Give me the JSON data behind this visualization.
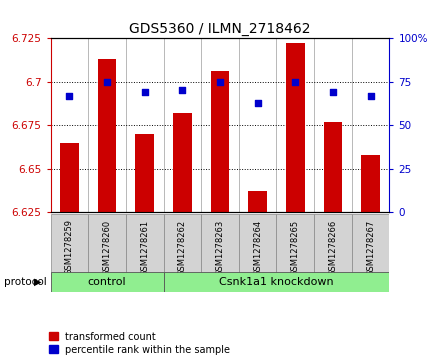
{
  "title": "GDS5360 / ILMN_2718462",
  "samples": [
    "GSM1278259",
    "GSM1278260",
    "GSM1278261",
    "GSM1278262",
    "GSM1278263",
    "GSM1278264",
    "GSM1278265",
    "GSM1278266",
    "GSM1278267"
  ],
  "bar_values": [
    6.665,
    6.713,
    6.67,
    6.682,
    6.706,
    6.637,
    6.722,
    6.677,
    6.658
  ],
  "dot_values": [
    67,
    75,
    69,
    70,
    75,
    63,
    75,
    69,
    67
  ],
  "bar_color": "#cc0000",
  "dot_color": "#0000cc",
  "ylim_left": [
    6.625,
    6.725
  ],
  "ylim_right": [
    0,
    100
  ],
  "yticks_left": [
    6.625,
    6.65,
    6.675,
    6.7,
    6.725
  ],
  "ytick_labels_left": [
    "6.625",
    "6.65",
    "6.675",
    "6.7",
    "6.725"
  ],
  "yticks_right": [
    0,
    25,
    50,
    75,
    100
  ],
  "ytick_labels_right": [
    "0",
    "25",
    "50",
    "75",
    "100%"
  ],
  "control_label": "control",
  "knockdown_label": "Csnk1a1 knockdown",
  "protocol_label": "protocol",
  "legend_bar": "transformed count",
  "legend_dot": "percentile rank within the sample",
  "tick_color_left": "#cc0000",
  "tick_color_right": "#0000cc",
  "control_count": 3,
  "knockdown_count": 6,
  "bar_width": 0.5,
  "group_bg": "#d3d3d3",
  "green_bg": "#90EE90"
}
